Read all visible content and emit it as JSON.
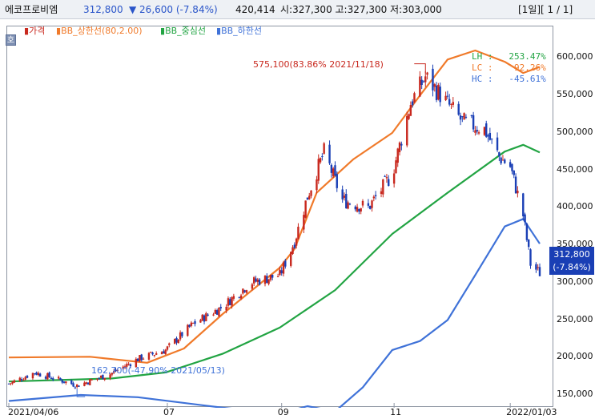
{
  "header": {
    "name": "에코프로비엠",
    "price": "312,800",
    "change": "▼ 26,600 (-7.84%)",
    "volume": "420,414",
    "ohlc": "시:327,300 고:327,300 저:303,000",
    "page": "[1일][ 1 / 1]"
  },
  "controls": {
    "ho_label": "호"
  },
  "legend": {
    "price": "가격",
    "upper": "BB_상한선(80,2.00)",
    "middle": "BB_중심선",
    "lower": "BB_하한선"
  },
  "stats": {
    "lh": "LH :   253.47%",
    "lc": "LC :    92.26%",
    "hc": "HC :   -45.61%"
  },
  "annotations": {
    "high": "575,100(83.86% 2021/11/18)",
    "low": "162,700(-47.90% 2021/05/13)"
  },
  "last_price": {
    "value": "312,800",
    "pct": "(-7.84%)"
  },
  "colors": {
    "up": "#c8281e",
    "down": "#1a3fb5",
    "upper_band": "#f07a2a",
    "middle_band": "#22a443",
    "lower_band": "#3f72d8",
    "header_blue": "#2a55c9"
  },
  "chart_data": {
    "type": "candlestick",
    "x_tick_labels": [
      "2021/04/06",
      "07",
      "09",
      "11",
      "2022/01/03"
    ],
    "y_ticks": [
      "150,000",
      "200,000",
      "250,000",
      "300,000",
      "350,000",
      "400,000",
      "450,000",
      "500,000",
      "550,000",
      "600,000"
    ],
    "y_tick_values": [
      150000,
      200000,
      250000,
      300000,
      350000,
      400000,
      450000,
      500000,
      550000,
      600000
    ],
    "ylim": [
      135000,
      640000
    ],
    "x_range": [
      "2021-04-06",
      "2022-01-19"
    ],
    "grid": false,
    "legend_position": "top-left",
    "series": [
      {
        "name": "가격",
        "type": "candlestick",
        "points": [
          {
            "date": "2021-04-06",
            "close": 165000
          },
          {
            "date": "2021-04-20",
            "close": 180000
          },
          {
            "date": "2021-05-01",
            "close": 172000
          },
          {
            "date": "2021-05-13",
            "close": 162700
          },
          {
            "date": "2021-05-31",
            "close": 178000
          },
          {
            "date": "2021-06-15",
            "close": 198000
          },
          {
            "date": "2021-06-30",
            "close": 210000
          },
          {
            "date": "2021-07-15",
            "close": 245000
          },
          {
            "date": "2021-07-31",
            "close": 268000
          },
          {
            "date": "2021-08-15",
            "close": 300000
          },
          {
            "date": "2021-08-31",
            "close": 310000
          },
          {
            "date": "2021-09-08",
            "close": 355000
          },
          {
            "date": "2021-09-15",
            "close": 415000
          },
          {
            "date": "2021-09-24",
            "close": 475000
          },
          {
            "date": "2021-10-04",
            "close": 410000
          },
          {
            "date": "2021-10-18",
            "close": 400000
          },
          {
            "date": "2021-10-31",
            "close": 445000
          },
          {
            "date": "2021-11-10",
            "close": 540000
          },
          {
            "date": "2021-11-18",
            "close": 575100
          },
          {
            "date": "2021-11-28",
            "close": 545000
          },
          {
            "date": "2021-12-08",
            "close": 515000
          },
          {
            "date": "2021-12-20",
            "close": 505000
          },
          {
            "date": "2021-12-28",
            "close": 468000
          },
          {
            "date": "2022-01-03",
            "close": 455000
          },
          {
            "date": "2022-01-10",
            "close": 390000
          },
          {
            "date": "2022-01-14",
            "close": 325000
          },
          {
            "date": "2022-01-19",
            "close": 312800
          }
        ]
      },
      {
        "name": "BB_상한선(80,2.00)",
        "type": "line",
        "points": [
          {
            "date": "2021-04-06",
            "value": 200000
          },
          {
            "date": "2021-05-20",
            "value": 201000
          },
          {
            "date": "2021-06-20",
            "value": 193000
          },
          {
            "date": "2021-07-10",
            "value": 212000
          },
          {
            "date": "2021-07-31",
            "value": 258000
          },
          {
            "date": "2021-08-31",
            "value": 320000
          },
          {
            "date": "2021-09-08",
            "value": 345000
          },
          {
            "date": "2021-09-20",
            "value": 420000
          },
          {
            "date": "2021-10-10",
            "value": 465000
          },
          {
            "date": "2021-10-31",
            "value": 500000
          },
          {
            "date": "2021-11-15",
            "value": 550000
          },
          {
            "date": "2021-11-30",
            "value": 598000
          },
          {
            "date": "2021-12-15",
            "value": 610000
          },
          {
            "date": "2021-12-31",
            "value": 595000
          },
          {
            "date": "2022-01-10",
            "value": 580000
          },
          {
            "date": "2022-01-19",
            "value": 588000
          }
        ]
      },
      {
        "name": "BB_중심선",
        "type": "line",
        "points": [
          {
            "date": "2021-04-06",
            "value": 168000
          },
          {
            "date": "2021-06-01",
            "value": 172000
          },
          {
            "date": "2021-06-30",
            "value": 180000
          },
          {
            "date": "2021-07-31",
            "value": 205000
          },
          {
            "date": "2021-08-31",
            "value": 240000
          },
          {
            "date": "2021-09-30",
            "value": 290000
          },
          {
            "date": "2021-10-31",
            "value": 365000
          },
          {
            "date": "2021-11-30",
            "value": 420000
          },
          {
            "date": "2021-12-31",
            "value": 475000
          },
          {
            "date": "2022-01-10",
            "value": 484000
          },
          {
            "date": "2022-01-19",
            "value": 474000
          }
        ]
      },
      {
        "name": "BB_하한선",
        "type": "line",
        "points": [
          {
            "date": "2021-04-06",
            "value": 142000
          },
          {
            "date": "2021-05-15",
            "value": 150000
          },
          {
            "date": "2021-06-15",
            "value": 147000
          },
          {
            "date": "2021-07-31",
            "value": 133000
          },
          {
            "date": "2021-08-31",
            "value": 125000
          },
          {
            "date": "2021-09-15",
            "value": 135000
          },
          {
            "date": "2021-09-30",
            "value": 128000
          },
          {
            "date": "2021-10-15",
            "value": 160000
          },
          {
            "date": "2021-10-31",
            "value": 210000
          },
          {
            "date": "2021-11-15",
            "value": 222000
          },
          {
            "date": "2021-11-30",
            "value": 250000
          },
          {
            "date": "2021-12-15",
            "value": 310000
          },
          {
            "date": "2021-12-31",
            "value": 375000
          },
          {
            "date": "2022-01-10",
            "value": 385000
          },
          {
            "date": "2022-01-19",
            "value": 352000
          }
        ]
      }
    ]
  }
}
